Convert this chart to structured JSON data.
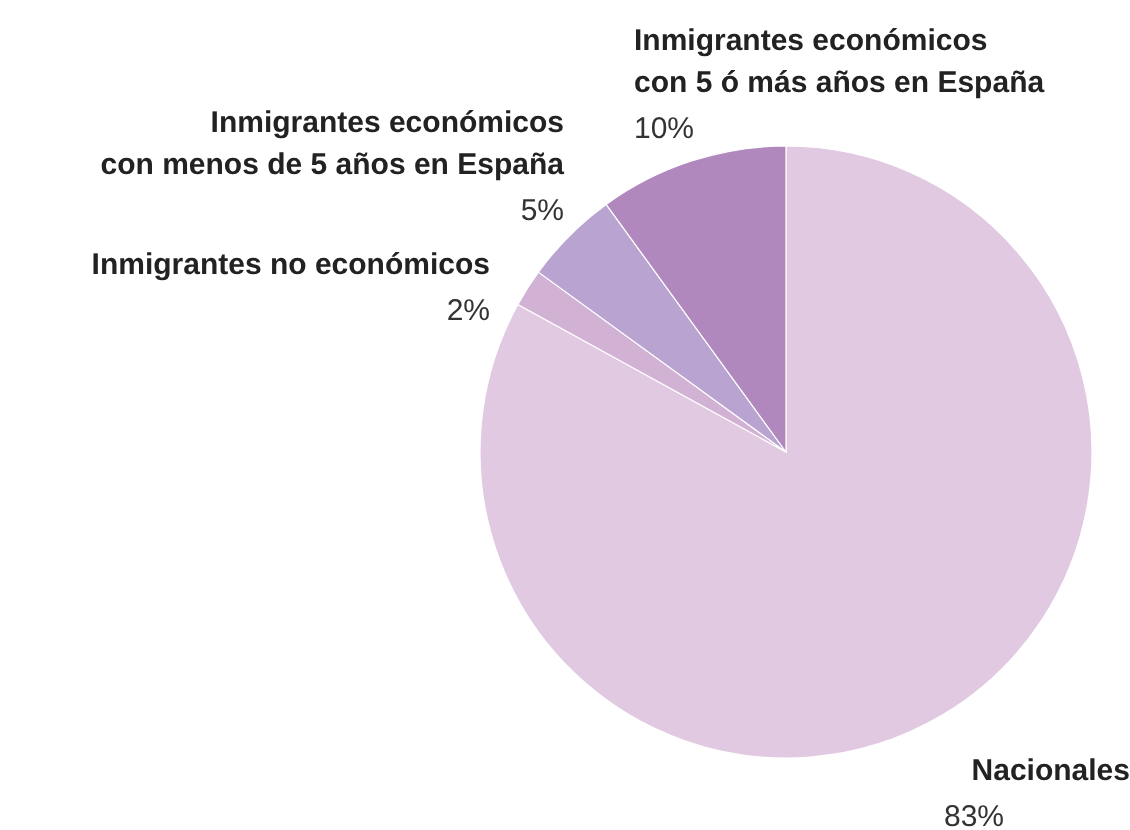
{
  "chart_data": {
    "type": "pie",
    "categories": [
      "Nacionales",
      "Inmigrantes no económicos",
      "Inmigrantes económicos\ncon menos de 5 años en España",
      "Inmigrantes económicos\ncon 5 ó más años en España"
    ],
    "values": [
      83,
      2,
      5,
      10
    ],
    "colors": [
      "#e0c9e1",
      "#d2b2d4",
      "#b9a3d0",
      "#b188bd"
    ],
    "value_labels": [
      "83%",
      "2%",
      "5%",
      "10%"
    ]
  }
}
